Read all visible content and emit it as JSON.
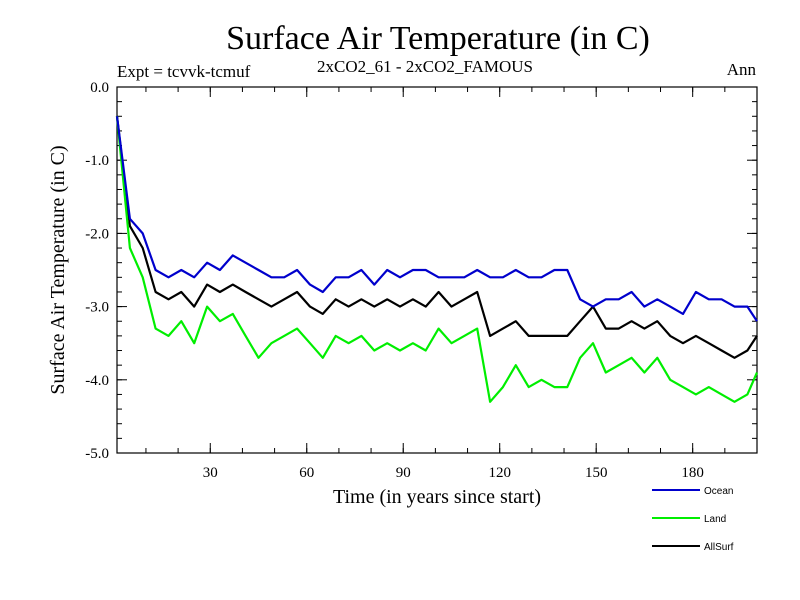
{
  "title": "Surface Air Temperature (in C)",
  "subtitle_left": "Expt = tcvvk-tcmuf",
  "subtitle_center": "2xCO2_61 - 2xCO2_FAMOUS",
  "subtitle_right": "Ann",
  "chart_data": {
    "type": "line",
    "xlabel": "Time (in years since start)",
    "ylabel": "Surface Air Temperature (in C)",
    "xlim": [
      1,
      200
    ],
    "ylim": [
      -5.0,
      0.0
    ],
    "xticks": [
      30,
      60,
      90,
      120,
      150,
      180
    ],
    "yticks": [
      0.0,
      -1.0,
      -2.0,
      -3.0,
      -4.0,
      -5.0
    ],
    "ytick_labels": [
      "0.0",
      "-1.0",
      "-2.0",
      "-3.0",
      "-4.0",
      "-5.0"
    ],
    "grid": false,
    "legend_position": "below-right",
    "series": [
      {
        "name": "Ocean",
        "color": "#0000cc",
        "x_step": 4,
        "x_start": 1,
        "values": [
          -0.4,
          -1.8,
          -2.0,
          -2.5,
          -2.6,
          -2.5,
          -2.6,
          -2.4,
          -2.5,
          -2.3,
          -2.4,
          -2.5,
          -2.6,
          -2.6,
          -2.5,
          -2.7,
          -2.8,
          -2.6,
          -2.6,
          -2.5,
          -2.7,
          -2.5,
          -2.6,
          -2.5,
          -2.5,
          -2.6,
          -2.6,
          -2.6,
          -2.5,
          -2.6,
          -2.6,
          -2.5,
          -2.6,
          -2.6,
          -2.5,
          -2.5,
          -2.9,
          -3.0,
          -2.9,
          -2.9,
          -2.8,
          -3.0,
          -2.9,
          -3.0,
          -3.1,
          -2.8,
          -2.9,
          -2.9,
          -3.0,
          -3.0,
          -3.2
        ]
      },
      {
        "name": "Land",
        "color": "#00ee00",
        "x_step": 4,
        "x_start": 1,
        "values": [
          -0.4,
          -2.2,
          -2.6,
          -3.3,
          -3.4,
          -3.2,
          -3.5,
          -3.0,
          -3.2,
          -3.1,
          -3.4,
          -3.7,
          -3.5,
          -3.4,
          -3.3,
          -3.5,
          -3.7,
          -3.4,
          -3.5,
          -3.4,
          -3.6,
          -3.5,
          -3.6,
          -3.5,
          -3.6,
          -3.3,
          -3.5,
          -3.4,
          -3.3,
          -4.3,
          -4.1,
          -3.8,
          -4.1,
          -4.0,
          -4.1,
          -4.1,
          -3.7,
          -3.5,
          -3.9,
          -3.8,
          -3.7,
          -3.9,
          -3.7,
          -4.0,
          -4.1,
          -4.2,
          -4.1,
          -4.2,
          -4.3,
          -4.2,
          -3.9
        ]
      },
      {
        "name": "AllSurf",
        "color": "#000000",
        "x_step": 4,
        "x_start": 1,
        "values": [
          -0.4,
          -1.9,
          -2.2,
          -2.8,
          -2.9,
          -2.8,
          -3.0,
          -2.7,
          -2.8,
          -2.7,
          -2.8,
          -2.9,
          -3.0,
          -2.9,
          -2.8,
          -3.0,
          -3.1,
          -2.9,
          -3.0,
          -2.9,
          -3.0,
          -2.9,
          -3.0,
          -2.9,
          -3.0,
          -2.8,
          -3.0,
          -2.9,
          -2.8,
          -3.4,
          -3.3,
          -3.2,
          -3.4,
          -3.4,
          -3.4,
          -3.4,
          -3.2,
          -3.0,
          -3.3,
          -3.3,
          -3.2,
          -3.3,
          -3.2,
          -3.4,
          -3.5,
          -3.4,
          -3.5,
          -3.6,
          -3.7,
          -3.6,
          -3.4
        ]
      }
    ]
  }
}
